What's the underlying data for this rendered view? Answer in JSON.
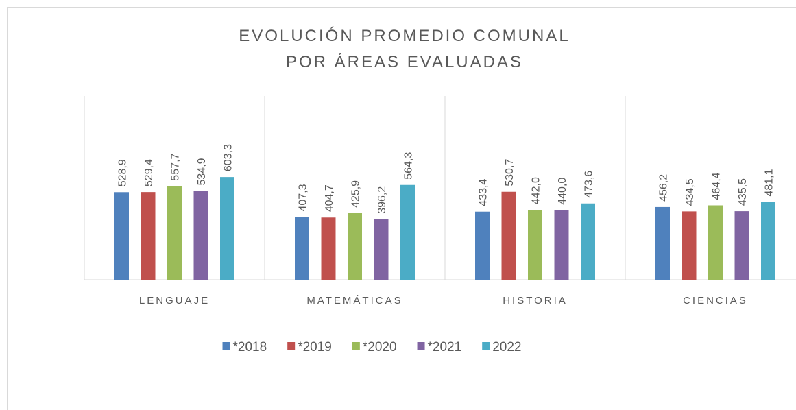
{
  "chart_data": {
    "type": "bar",
    "title": [
      "EVOLUCIÓN PROMEDIO COMUNAL",
      "POR ÁREAS EVALUADAS"
    ],
    "categories": [
      "LENGUAJE",
      "MATEMÁTICAS",
      "HISTORIA",
      "CIENCIAS"
    ],
    "series": [
      {
        "name": "*2018",
        "color": "#4f81bd",
        "values": [
          528.9,
          407.3,
          433.4,
          456.2
        ],
        "value_labels": [
          "528,9",
          "407,3",
          "433,4",
          "456,2"
        ]
      },
      {
        "name": "*2019",
        "color": "#c0504d",
        "values": [
          529.4,
          404.7,
          530.7,
          434.5
        ],
        "value_labels": [
          "529,4",
          "404,7",
          "530,7",
          "434,5"
        ]
      },
      {
        "name": "*2020",
        "color": "#9bbb59",
        "values": [
          557.7,
          425.9,
          442.0,
          464.4
        ],
        "value_labels": [
          "557,7",
          "425,9",
          "442,0",
          "464,4"
        ]
      },
      {
        "name": "*2021",
        "color": "#8064a2",
        "values": [
          534.9,
          396.2,
          440.0,
          435.5
        ],
        "value_labels": [
          "534,9",
          "396,2",
          "440,0",
          "435,5"
        ]
      },
      {
        "name": "2022",
        "color": "#4bacc6",
        "values": [
          603.3,
          564.3,
          473.6,
          481.1
        ],
        "value_labels": [
          "603,3",
          "564,3",
          "473,6",
          "481,1"
        ]
      }
    ],
    "ylim": [
      100,
      1000
    ],
    "legend": "bottom"
  }
}
